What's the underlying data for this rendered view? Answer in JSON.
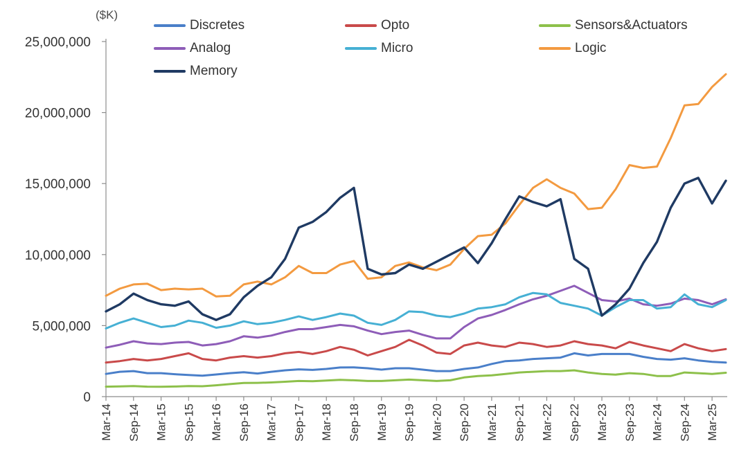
{
  "chart_data": {
    "type": "line",
    "unit_label": "($K)",
    "x": [
      "Mar-14",
      "Jun-14",
      "Sep-14",
      "Dec-14",
      "Mar-15",
      "Jun-15",
      "Sep-15",
      "Dec-15",
      "Mar-16",
      "Jun-16",
      "Sep-16",
      "Dec-16",
      "Mar-17",
      "Jun-17",
      "Sep-17",
      "Dec-17",
      "Mar-18",
      "Jun-18",
      "Sep-18",
      "Dec-18",
      "Mar-19",
      "Jun-19",
      "Sep-19",
      "Dec-19",
      "Mar-20",
      "Jun-20",
      "Sep-20",
      "Dec-20",
      "Mar-21",
      "Jun-21",
      "Sep-21",
      "Dec-21",
      "Mar-22",
      "Jun-22",
      "Sep-22",
      "Dec-22",
      "Mar-23",
      "Jun-23",
      "Sep-23",
      "Dec-23",
      "Mar-24",
      "Jun-24",
      "Sep-24",
      "Dec-24",
      "Mar-25",
      "Jun-25"
    ],
    "x_tick_labels": [
      "Mar-14",
      "Sep-14",
      "Mar-15",
      "Sep-15",
      "Mar-16",
      "Sep-16",
      "Mar-17",
      "Sep-17",
      "Mar-18",
      "Sep-18",
      "Mar-19",
      "Sep-19",
      "Mar-20",
      "Sep-20",
      "Mar-21",
      "Sep-21",
      "Mar-22",
      "Sep-22",
      "Mar-23",
      "Sep-23",
      "Mar-24",
      "Sep-24",
      "Mar-25"
    ],
    "y_ticks": [
      0,
      5000000,
      10000000,
      15000000,
      20000000,
      25000000
    ],
    "y_tick_labels": [
      "0",
      "5,000,000",
      "10,000,000",
      "15,000,000",
      "20,000,000",
      "25,000,000"
    ],
    "ylim": [
      0,
      25000000
    ],
    "grid": false,
    "legend_position": "top",
    "series": [
      {
        "name": "Discretes",
        "color": "#4a7fc9",
        "values": [
          1600000,
          1750000,
          1800000,
          1650000,
          1650000,
          1580000,
          1520000,
          1470000,
          1560000,
          1650000,
          1720000,
          1630000,
          1750000,
          1850000,
          1920000,
          1880000,
          1950000,
          2050000,
          2060000,
          2000000,
          1900000,
          2000000,
          2000000,
          1900000,
          1800000,
          1800000,
          1950000,
          2050000,
          2300000,
          2500000,
          2550000,
          2650000,
          2700000,
          2750000,
          3050000,
          2900000,
          3000000,
          3000000,
          3000000,
          2800000,
          2650000,
          2600000,
          2700000,
          2550000,
          2450000,
          2400000
        ]
      },
      {
        "name": "Opto",
        "color": "#c94a4a",
        "values": [
          2400000,
          2500000,
          2650000,
          2550000,
          2650000,
          2850000,
          3050000,
          2650000,
          2550000,
          2750000,
          2850000,
          2750000,
          2850000,
          3050000,
          3150000,
          3000000,
          3200000,
          3500000,
          3300000,
          2900000,
          3200000,
          3500000,
          4000000,
          3600000,
          3100000,
          3000000,
          3600000,
          3800000,
          3600000,
          3500000,
          3800000,
          3700000,
          3500000,
          3600000,
          3900000,
          3700000,
          3600000,
          3400000,
          3850000,
          3600000,
          3400000,
          3200000,
          3700000,
          3400000,
          3200000,
          3350000
        ]
      },
      {
        "name": "Sensors&Actuators",
        "color": "#8dc04a",
        "values": [
          700000,
          720000,
          740000,
          700000,
          690000,
          710000,
          740000,
          730000,
          800000,
          880000,
          960000,
          970000,
          1000000,
          1050000,
          1100000,
          1080000,
          1130000,
          1180000,
          1150000,
          1100000,
          1100000,
          1150000,
          1200000,
          1150000,
          1100000,
          1150000,
          1350000,
          1450000,
          1500000,
          1600000,
          1700000,
          1750000,
          1800000,
          1800000,
          1850000,
          1700000,
          1600000,
          1550000,
          1650000,
          1600000,
          1450000,
          1450000,
          1700000,
          1650000,
          1600000,
          1680000
        ]
      },
      {
        "name": "Analog",
        "color": "#8e5db8",
        "values": [
          3450000,
          3650000,
          3900000,
          3750000,
          3700000,
          3800000,
          3850000,
          3600000,
          3700000,
          3900000,
          4250000,
          4150000,
          4300000,
          4550000,
          4750000,
          4750000,
          4900000,
          5050000,
          4950000,
          4650000,
          4400000,
          4550000,
          4650000,
          4350000,
          4100000,
          4100000,
          4900000,
          5500000,
          5750000,
          6100000,
          6500000,
          6850000,
          7100000,
          7450000,
          7800000,
          7300000,
          6800000,
          6700000,
          6900000,
          6500000,
          6400000,
          6550000,
          6900000,
          6800000,
          6500000,
          6850000
        ]
      },
      {
        "name": "Micro",
        "color": "#46b0d4",
        "values": [
          4800000,
          5200000,
          5500000,
          5200000,
          4900000,
          5000000,
          5350000,
          5200000,
          4850000,
          5000000,
          5300000,
          5100000,
          5200000,
          5400000,
          5650000,
          5400000,
          5600000,
          5850000,
          5700000,
          5200000,
          5050000,
          5400000,
          6000000,
          5950000,
          5700000,
          5600000,
          5850000,
          6200000,
          6300000,
          6500000,
          7000000,
          7300000,
          7200000,
          6600000,
          6400000,
          6200000,
          5700000,
          6300000,
          6800000,
          6800000,
          6200000,
          6300000,
          7200000,
          6500000,
          6300000,
          6800000
        ]
      },
      {
        "name": "Logic",
        "color": "#f39a40",
        "values": [
          7100000,
          7600000,
          7900000,
          7950000,
          7500000,
          7600000,
          7550000,
          7600000,
          7050000,
          7100000,
          7900000,
          8100000,
          7900000,
          8400000,
          9200000,
          8700000,
          8700000,
          9300000,
          9550000,
          8300000,
          8400000,
          9200000,
          9450000,
          9100000,
          8900000,
          9300000,
          10400000,
          11300000,
          11400000,
          12200000,
          13500000,
          14700000,
          15300000,
          14700000,
          14300000,
          13200000,
          13300000,
          14600000,
          16300000,
          16100000,
          16200000,
          18200000,
          20500000,
          20600000,
          21800000,
          22700000
        ]
      },
      {
        "name": "Memory",
        "color": "#1f3a63",
        "values": [
          6000000,
          6500000,
          7250000,
          6800000,
          6500000,
          6400000,
          6700000,
          5800000,
          5400000,
          5800000,
          7000000,
          7800000,
          8400000,
          9700000,
          11900000,
          12300000,
          13000000,
          14000000,
          14700000,
          9000000,
          8600000,
          8700000,
          9300000,
          9000000,
          9500000,
          10000000,
          10500000,
          9400000,
          10800000,
          12500000,
          14100000,
          13700000,
          13400000,
          13900000,
          9700000,
          9000000,
          5700000,
          6500000,
          7600000,
          9400000,
          10900000,
          13300000,
          15000000,
          15400000,
          13600000,
          15200000
        ]
      }
    ]
  }
}
